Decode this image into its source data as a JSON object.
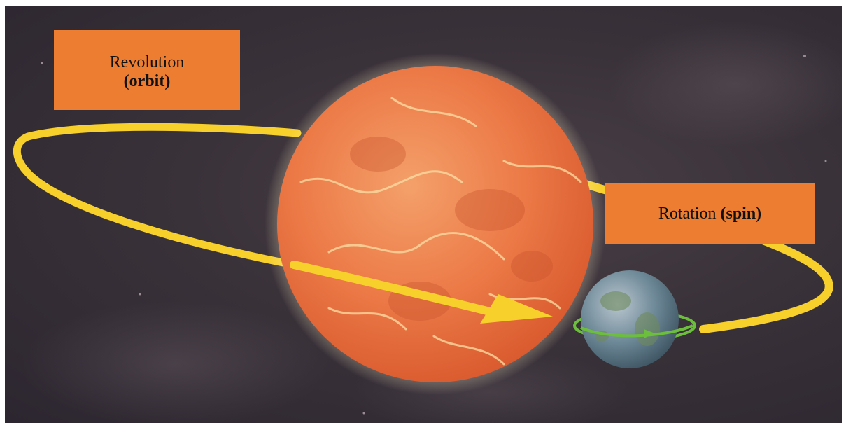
{
  "labels": {
    "revolution": {
      "main": "Revolution",
      "bold": "(orbit)"
    },
    "rotation": {
      "main": "Rotation",
      "bold": "(spin)"
    }
  },
  "colors": {
    "label_box": "#ed7d31",
    "orbit_path": "#f7d02b",
    "spin_ring": "#6cbf3c",
    "space_background": "#3a3239",
    "sun_core": "#f08a52",
    "planet": "#5f7f93"
  },
  "icons": {
    "orbit_arrow": "arrow-icon",
    "spin_ring": "spin-ring-icon"
  }
}
